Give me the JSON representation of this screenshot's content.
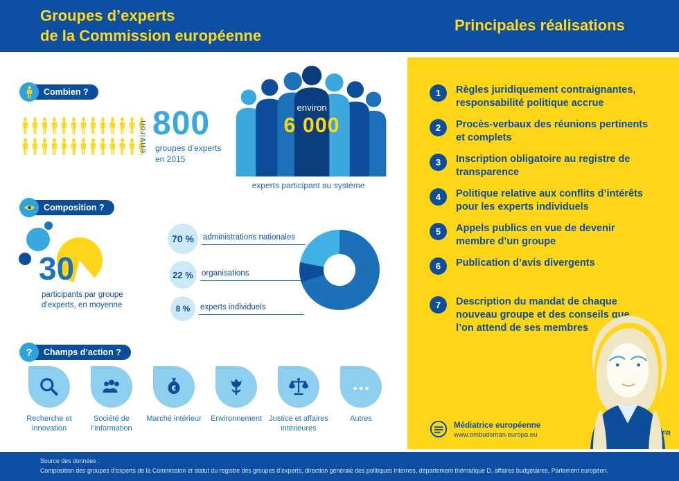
{
  "header": {
    "title_line1": "Groupes d’experts",
    "title_line2": "de la Commission européenne",
    "title_right": "Principales réalisations"
  },
  "combien": {
    "badge": "Combien ?",
    "pictogram": {
      "rows": 2,
      "per_row": 13
    },
    "environ": "environ",
    "count": "800",
    "caption_line1": "groupes d’experts",
    "caption_line2": "en 2015",
    "crowd_environ": "environ",
    "crowd_count": "6 000",
    "crowd_caption": "experts participant au système"
  },
  "composition": {
    "badge": "Composition ?",
    "average": "30",
    "average_caption": "participants par groupe d’experts, en moyenne"
  },
  "chart_data": {
    "type": "pie",
    "donut": true,
    "title": "Composition des groupes d’experts",
    "labels": [
      "administrations nationales",
      "organisations",
      "experts individuels"
    ],
    "values": [
      70,
      22,
      8
    ],
    "value_labels": [
      "70 %",
      "22 %",
      "8 %"
    ],
    "colors": [
      "#1d70b7",
      "#41b0e4",
      "#0d4e9b"
    ],
    "draw_order": [
      0,
      2,
      1
    ]
  },
  "champs": {
    "badge": "Champs d’action ?",
    "items": [
      {
        "icon": "search-icon",
        "label": "Recherche et innovation"
      },
      {
        "icon": "people-icon",
        "label": "Société de l’information"
      },
      {
        "icon": "money-bag-icon",
        "label": "Marché intérieur"
      },
      {
        "icon": "flower-icon",
        "label": "Environnement"
      },
      {
        "icon": "scales-icon",
        "label": "Justice et affaires intérieures"
      },
      {
        "icon": "ellipsis-icon",
        "label": "Autres"
      }
    ]
  },
  "achievements": [
    {
      "num": "1",
      "text": "Règles juridiquement contraignantes, responsabilité politique accrue"
    },
    {
      "num": "2",
      "text": "Procès-verbaux des réunions pertinents et complets"
    },
    {
      "num": "3",
      "text": "Inscription obligatoire au registre de transparence"
    },
    {
      "num": "4",
      "text": "Politique relative aux conflits d’intérêts pour les experts individuels"
    },
    {
      "num": "5",
      "text": "Appels publics en vue de devenir membre d’un groupe"
    },
    {
      "num": "6",
      "text": "Publication d’avis divergents"
    },
    {
      "num": "7",
      "text": "Description du mandat de chaque nouveau groupe et des conseils que l’on attend de ses membres"
    }
  ],
  "brand": {
    "name": "Médiatrice européenne",
    "url": "www.ombudsman.europa.eu",
    "lang": "FR"
  },
  "footer": {
    "line1": "Source des données :",
    "line2": "Composition des groupes d’experts de la Commission et statut du registre des groupes d’experts, direction générale des politiques internes, département thématique D, affaires budgétaires, Parlement européen."
  }
}
